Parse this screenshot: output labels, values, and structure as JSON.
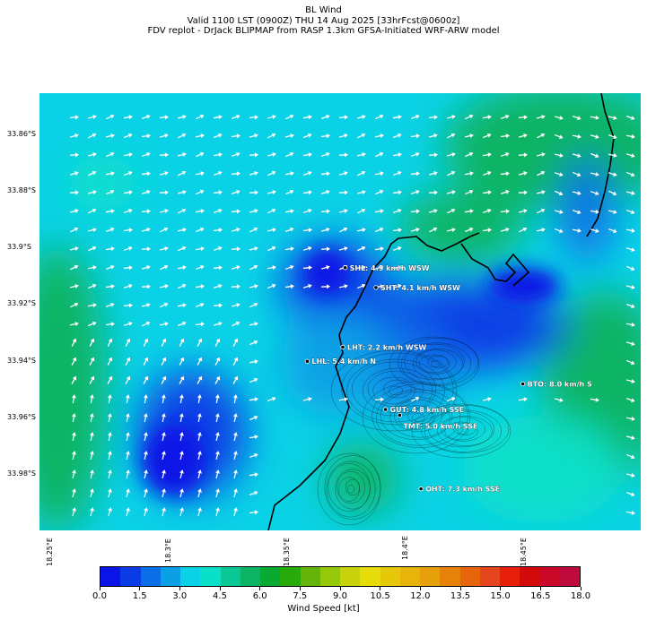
{
  "title": {
    "line1": "BL Wind",
    "line2": "Valid 1100 LST (0900Z) THU 14 Aug 2025 [33hrFcst@0600z]",
    "line3": "FDV replot - DrJack BLIPMAP from RASP 1.3km GFSA-Initiated WRF-ARW model"
  },
  "lat_ticks": [
    "33.86°S",
    "33.88°S",
    "33.9°S",
    "33.92°S",
    "33.94°S",
    "33.96°S",
    "33.98°S"
  ],
  "lon_ticks": [
    "18.25°E",
    "18.3°E",
    "18.35°E",
    "18.4°E",
    "18.45°E"
  ],
  "stations": [
    {
      "code": "SHL",
      "text": "SHL: 4.9 km/h WSW",
      "lon": 18.376,
      "lat": -33.907
    },
    {
      "code": "SHT",
      "text": "SHT: 4.1 km/h WSW",
      "lon": 18.389,
      "lat": -33.914
    },
    {
      "code": "LHT",
      "text": "LHT: 2.2 km/h WSW",
      "lon": 18.375,
      "lat": -33.935
    },
    {
      "code": "LHL",
      "text": "LHL: 5.4 km/h N",
      "lon": 18.36,
      "lat": -33.94
    },
    {
      "code": "BTO",
      "text": "BTO: 8.0 km/h S",
      "lon": 18.451,
      "lat": -33.948
    },
    {
      "code": "GUT",
      "text": "GUT: 4.8 km/h SSE",
      "lon": 18.393,
      "lat": -33.957
    },
    {
      "code": "TMT",
      "text": "TMT: 5.0 km/h SSE",
      "lon": 18.399,
      "lat": -33.959
    },
    {
      "code": "OHT",
      "text": "OHT: 7.3 km/h SSE",
      "lon": 18.408,
      "lat": -33.985
    }
  ],
  "colorbar": {
    "label": "Wind Speed [kt]",
    "ticks": [
      "0.0",
      "1.5",
      "3.0",
      "4.5",
      "6.0",
      "7.5",
      "9.0",
      "10.5",
      "12.0",
      "13.5",
      "15.0",
      "16.5",
      "18.0"
    ],
    "colors": [
      "#0a14e6",
      "#0a3ce6",
      "#0a6ee6",
      "#0aa0e6",
      "#0ad2e6",
      "#0ae0c8",
      "#0ac896",
      "#0ab464",
      "#0aaa32",
      "#28aa0a",
      "#64b40a",
      "#96c80a",
      "#c8d20a",
      "#e6dc0a",
      "#e6c80a",
      "#e6b40a",
      "#e6a00a",
      "#e6820a",
      "#e6640a",
      "#e6461e",
      "#e61e0a",
      "#d20a0a",
      "#c80a28",
      "#be0a3c"
    ]
  },
  "map_colors": {
    "cyan": "#0ad2e6",
    "teal": "#0ae0c8",
    "green": "#0ab464",
    "blue": "#0a3ce6",
    "light_blue": "#0aa0e6",
    "coast": "#000000"
  }
}
